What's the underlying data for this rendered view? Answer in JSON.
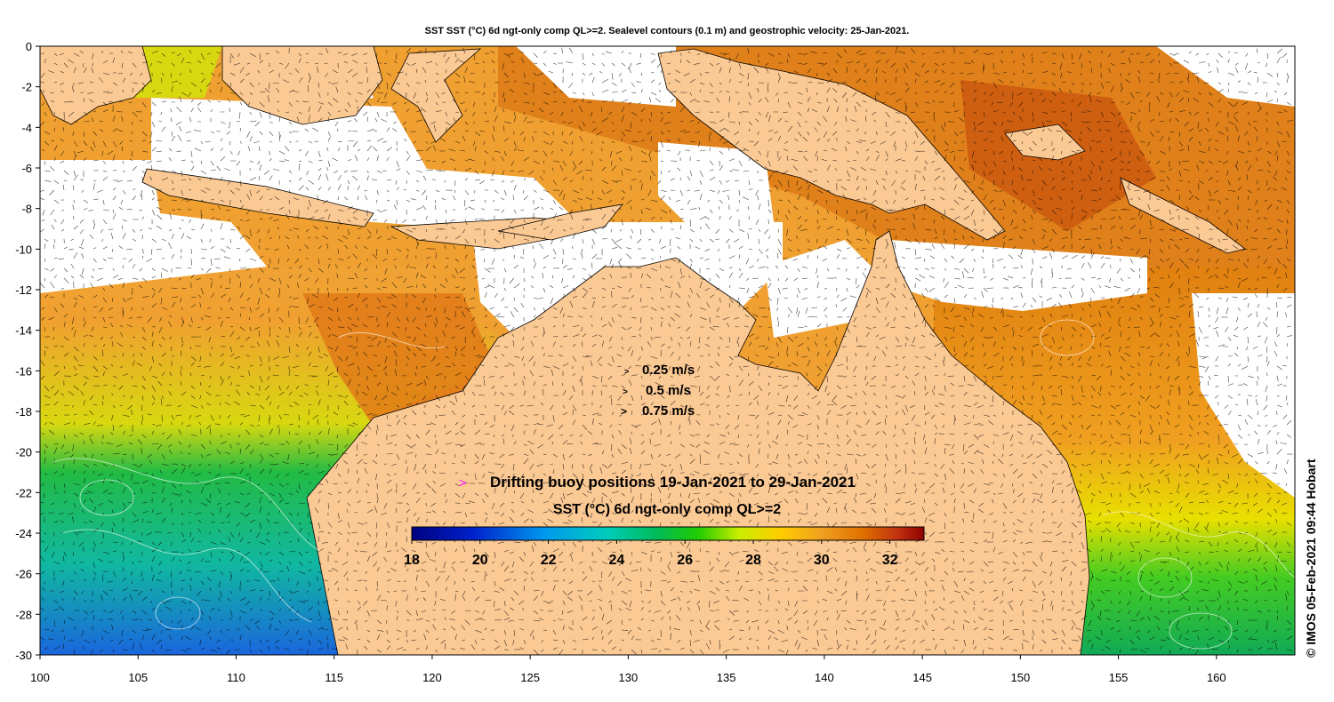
{
  "title": "SST SST (°C) 6d ngt-only comp QL>=2. Sealevel contours (0.1 m) and geostrophic velocity: 25-Jan-2021.",
  "axes": {
    "x_ticks": [
      "100",
      "105",
      "110",
      "115",
      "120",
      "125",
      "130",
      "135",
      "140",
      "145",
      "150",
      "155",
      "160"
    ],
    "y_ticks": [
      "0",
      "-2",
      "-4",
      "-6",
      "-8",
      "-10",
      "-12",
      "-14",
      "-16",
      "-18",
      "-20",
      "-22",
      "-24",
      "-26",
      "-28",
      "-30"
    ],
    "lon_range": [
      100,
      164
    ],
    "lat_range": [
      -30,
      0
    ]
  },
  "velocity_legend": [
    {
      "label": "0.25 m/s",
      "marker": ">"
    },
    {
      "label": "0.5 m/s",
      "marker": ">"
    },
    {
      "label": "0.75 m/s",
      "marker": ">"
    }
  ],
  "buoy_legend": {
    "marker": ">",
    "label": "Drifting buoy positions 19-Jan-2021 to 29-Jan-2021",
    "marker_color": "#ff00ff"
  },
  "colorbar": {
    "title": "SST (°C) 6d ngt-only comp QL>=2",
    "ticks": [
      "18",
      "20",
      "22",
      "24",
      "26",
      "28",
      "30",
      "32"
    ],
    "range": [
      18,
      33
    ]
  },
  "credit": "© IMOS 05-Feb-2021 09:44 Hobart",
  "colors": {
    "land": "#fbc994",
    "cloud": "#ffffff"
  }
}
